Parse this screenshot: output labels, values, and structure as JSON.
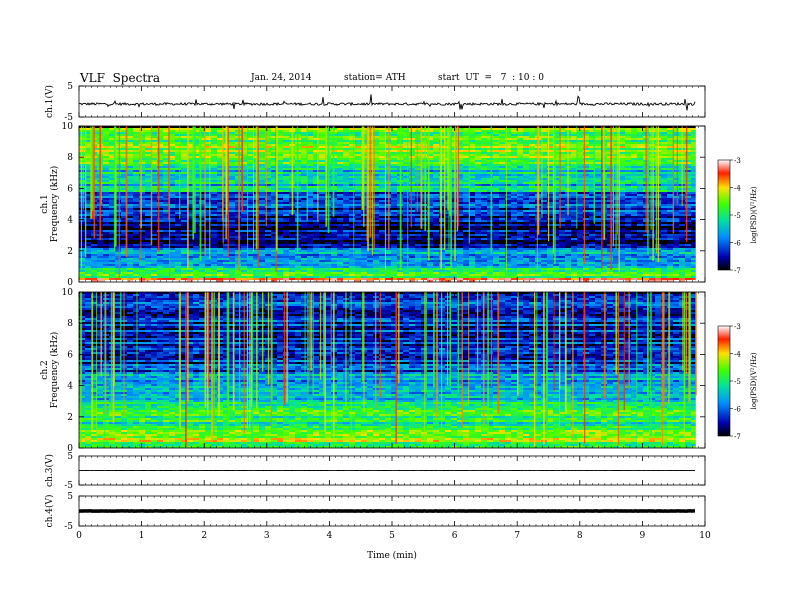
{
  "header": {
    "title": "VLF  Spectra",
    "date": "Jan. 24, 2014",
    "station": "station= ATH",
    "start_ut": "start  UT  =   7  : 10 : 0"
  },
  "chart_data": [
    {
      "type": "line",
      "panel": "ch1-waveform",
      "ylabel": "ch.1(V)",
      "ylim": [
        -5,
        5
      ],
      "yticks": [
        "5",
        "-5"
      ],
      "series": [
        {
          "name": "",
          "baseline": -0.8
        }
      ]
    },
    {
      "type": "heatmap",
      "panel": "ch1-spectrogram",
      "ylabel": "ch.1\nFrequency  (kHz)",
      "ylim": [
        0,
        10
      ],
      "yticks": [
        "0",
        "2",
        "4",
        "6",
        "8",
        "10"
      ],
      "colorbar": {
        "label": "log(PSD)(V²/Hz)",
        "range": [
          -7,
          -3
        ],
        "ticks": [
          "-3",
          "-4",
          "-5",
          "-6",
          "-7"
        ]
      },
      "bands": [
        {
          "from": 0,
          "to": 0.3,
          "level": -3.3
        },
        {
          "from": 0.3,
          "to": 1.0,
          "level": -4.6
        },
        {
          "from": 1.0,
          "to": 2.2,
          "level": -5.6
        },
        {
          "from": 2.2,
          "to": 4.5,
          "level": -6.6
        },
        {
          "from": 4.5,
          "to": 5.8,
          "level": -6.3
        },
        {
          "from": 5.8,
          "to": 7.5,
          "level": -5.4
        },
        {
          "from": 7.5,
          "to": 10,
          "level": -4.6
        }
      ]
    },
    {
      "type": "heatmap",
      "panel": "ch2-spectrogram",
      "ylabel": "ch.2\nFrequency  (kHz)",
      "ylim": [
        0,
        10
      ],
      "yticks": [
        "0",
        "2",
        "4",
        "6",
        "8",
        "10"
      ],
      "colorbar": {
        "label": "log(PSD)(V²/Hz)",
        "range": [
          -7,
          -3
        ],
        "ticks": [
          "-3",
          "-4",
          "-5",
          "-6",
          "-7"
        ]
      },
      "bands": [
        {
          "from": 0,
          "to": 0.3,
          "level": -5.2
        },
        {
          "from": 0.3,
          "to": 1.5,
          "level": -4.5
        },
        {
          "from": 1.5,
          "to": 3.0,
          "level": -5.0
        },
        {
          "from": 3.0,
          "to": 5.0,
          "level": -5.6
        },
        {
          "from": 5.0,
          "to": 6.5,
          "level": -6.2
        },
        {
          "from": 6.5,
          "to": 10,
          "level": -6.3
        }
      ]
    },
    {
      "type": "line",
      "panel": "ch3-waveform",
      "ylabel": "ch.3(V)",
      "ylim": [
        -5,
        5
      ],
      "yticks": [
        "5",
        "-5"
      ],
      "series": [
        {
          "name": "",
          "baseline": 0
        }
      ]
    },
    {
      "type": "line",
      "panel": "ch4-waveform",
      "ylabel": "ch.4(V)",
      "ylim": [
        -5,
        5
      ],
      "yticks": [
        "5",
        "-5"
      ],
      "series": [
        {
          "name": "",
          "baseline": 0
        }
      ]
    }
  ],
  "x_axis": {
    "label": "Time  (min)",
    "range": [
      0,
      10
    ],
    "data_end": 9.85,
    "ticks": [
      "0",
      "1",
      "2",
      "3",
      "4",
      "5",
      "6",
      "7",
      "8",
      "9",
      "10"
    ]
  }
}
